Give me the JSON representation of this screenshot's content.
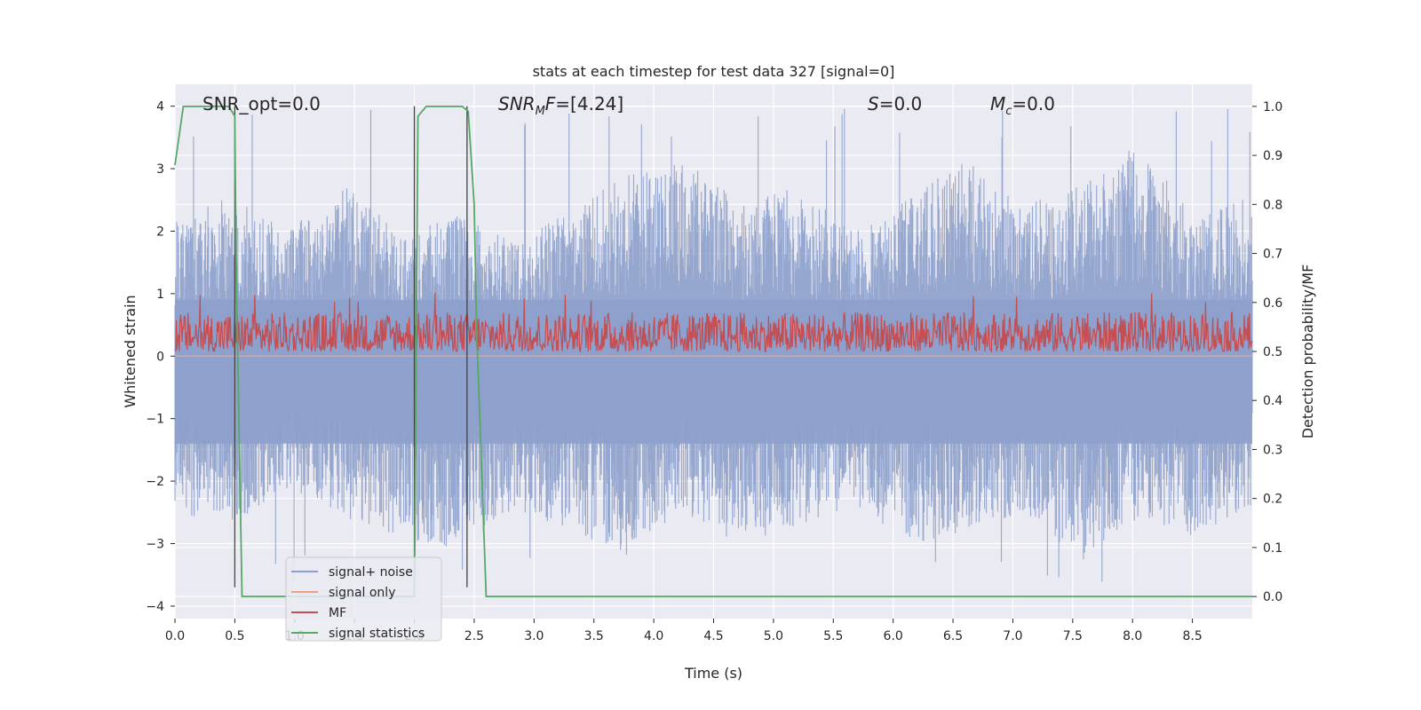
{
  "chart_data": {
    "type": "line",
    "title": "stats at each timestep for test data 327 [signal=0]",
    "xlabel": "Time (s)",
    "ylabel_left": "Whitened strain",
    "ylabel_right": "Detection probability/MF",
    "xlim": [
      0.0,
      9.0
    ],
    "ylim_left": [
      -4.2,
      4.35
    ],
    "ylim_right": [
      -0.045,
      1.045
    ],
    "x_ticks": [
      "0.0",
      "0.5",
      "1.0",
      "1.5",
      "2.0",
      "2.5",
      "3.0",
      "3.5",
      "4.0",
      "4.5",
      "5.0",
      "5.5",
      "6.0",
      "6.5",
      "7.0",
      "7.5",
      "8.0",
      "8.5"
    ],
    "y_ticks_left": [
      "4",
      "3",
      "2",
      "1",
      "0",
      "−1",
      "−2",
      "−3",
      "−4"
    ],
    "y_ticks_right": [
      "1.0",
      "0.9",
      "0.8",
      "0.7",
      "0.6",
      "0.5",
      "0.4",
      "0.3",
      "0.2",
      "0.1",
      "0.0"
    ],
    "grid": true,
    "legend_position": "lower-left",
    "annotations": {
      "snr_opt": "SNR_opt=0.0",
      "snr_mf_base": "SNR",
      "snr_mf_sub": "M",
      "snr_mf_tail": "F=[4.24]",
      "s_italic": "S",
      "s_value": "=0.0",
      "mc_base": "M",
      "mc_sub": "c",
      "mc_value": "=0.0"
    },
    "series": [
      {
        "name": "signal+ noise",
        "axis": "left",
        "color": "#8da0cb",
        "kind": "noise",
        "envelope_top": [
          2.2,
          2.6,
          2.0,
          2.8,
          1.9,
          2.3,
          1.8,
          2.4,
          2.9,
          3.1,
          2.5,
          2.7,
          2.0,
          2.6,
          3.2,
          2.4,
          2.8,
          3.4,
          2.2,
          2.6
        ],
        "envelope_bottom": [
          -2.5,
          -2.7,
          -2.1,
          -2.6,
          -2.9,
          -3.1,
          -2.5,
          -2.8,
          -3.2,
          -2.6,
          -3.0,
          -2.7,
          -2.4,
          -3.0,
          -2.8,
          -2.5,
          -3.3,
          -2.6,
          -2.9,
          -2.4
        ],
        "max_value": 4.0,
        "min_value": -3.7
      },
      {
        "name": "signal only",
        "axis": "left",
        "color": "#e8a385",
        "x": [
          0.0,
          9.0
        ],
        "y": [
          0.0,
          0.0
        ]
      },
      {
        "name": "MF",
        "axis": "right",
        "color": "#c44e52",
        "kind": "noise",
        "baseline": 0.5,
        "typical_max": 0.58,
        "peak_max": 0.62
      },
      {
        "name": "signal statistics",
        "axis": "right",
        "color": "#55a868",
        "x": [
          0.0,
          0.07,
          0.45,
          0.5,
          0.51,
          0.56,
          0.6,
          1.95,
          2.0,
          2.03,
          2.1,
          2.4,
          2.45,
          2.5,
          2.52,
          2.6,
          3.0,
          9.0
        ],
        "y": [
          0.88,
          1.0,
          1.0,
          0.98,
          0.7,
          0.0,
          0.0,
          0.0,
          0.0,
          0.98,
          1.0,
          1.0,
          0.99,
          0.8,
          0.55,
          0.0,
          0.0,
          0.0
        ]
      }
    ],
    "vertical_markers": [
      {
        "x": 0.5,
        "y_top": 4.0,
        "y_bottom": -3.7
      },
      {
        "x": 2.0,
        "y_top": 4.0,
        "y_bottom": -3.7
      },
      {
        "x": 2.44,
        "y_top": 4.0,
        "y_bottom": -3.7
      }
    ]
  },
  "colors": {
    "plot_background": "#eaeaf2",
    "grid": "#ffffff",
    "marker_line": "#444444",
    "legend_background": "#eaeaf2",
    "legend_border": "#cccccc"
  }
}
